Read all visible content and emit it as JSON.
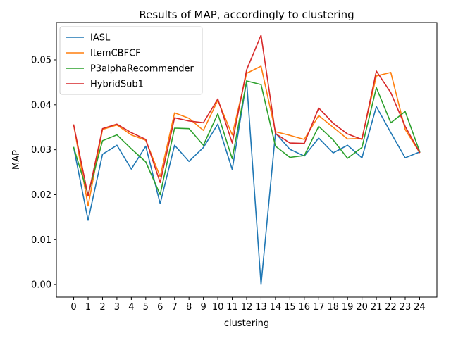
{
  "chart_data": {
    "type": "line",
    "title": "Results of MAP, accordingly to clustering",
    "xlabel": "clustering",
    "ylabel": "MAP",
    "x": [
      0,
      1,
      2,
      3,
      4,
      5,
      6,
      7,
      8,
      9,
      10,
      11,
      12,
      13,
      14,
      15,
      16,
      17,
      18,
      19,
      20,
      21,
      22,
      23,
      24
    ],
    "x_tick_labels": [
      "0",
      "1",
      "2",
      "3",
      "4",
      "5",
      "6",
      "7",
      "8",
      "9",
      "10",
      "11",
      "12",
      "13",
      "14",
      "15",
      "16",
      "17",
      "18",
      "19",
      "20",
      "21",
      "22",
      "23",
      "24"
    ],
    "y_ticks": [
      0.0,
      0.01,
      0.02,
      0.03,
      0.04,
      0.05
    ],
    "y_tick_labels": [
      "0.00",
      "0.01",
      "0.02",
      "0.03",
      "0.04",
      "0.05"
    ],
    "ylim": [
      -0.0028,
      0.0583
    ],
    "xlim": [
      -1.2,
      25.2
    ],
    "grid": false,
    "legend_position": "upper-left",
    "series": [
      {
        "name": "IASL",
        "color": "#1f77b4",
        "values": [
          0.0305,
          0.0143,
          0.029,
          0.031,
          0.0257,
          0.0308,
          0.018,
          0.031,
          0.0274,
          0.0305,
          0.0357,
          0.0256,
          0.0453,
          0.0,
          0.0337,
          0.0301,
          0.0286,
          0.0326,
          0.0293,
          0.031,
          0.0282,
          0.0396,
          0.0338,
          0.0282,
          0.0295
        ]
      },
      {
        "name": "ItemCBFCF",
        "color": "#ff7f0e",
        "values": [
          0.0355,
          0.0175,
          0.0345,
          0.0355,
          0.0333,
          0.0321,
          0.024,
          0.0382,
          0.037,
          0.0343,
          0.041,
          0.0333,
          0.047,
          0.0486,
          0.034,
          0.0332,
          0.0323,
          0.0376,
          0.035,
          0.0324,
          0.0325,
          0.0464,
          0.0472,
          0.0345,
          0.0294
        ]
      },
      {
        "name": "P3alphaRecommender",
        "color": "#2ca02c",
        "values": [
          0.0305,
          0.02,
          0.032,
          0.0333,
          0.0302,
          0.0273,
          0.02,
          0.0348,
          0.0347,
          0.031,
          0.038,
          0.028,
          0.0453,
          0.0445,
          0.0308,
          0.0283,
          0.0287,
          0.0352,
          0.0322,
          0.0281,
          0.0305,
          0.0438,
          0.036,
          0.0385,
          0.0296
        ]
      },
      {
        "name": "HybridSub1",
        "color": "#d62728",
        "values": [
          0.0355,
          0.0197,
          0.0347,
          0.0357,
          0.0338,
          0.0323,
          0.0227,
          0.0371,
          0.0364,
          0.036,
          0.0413,
          0.0315,
          0.0478,
          0.0555,
          0.0336,
          0.0315,
          0.0314,
          0.0393,
          0.0359,
          0.0335,
          0.0323,
          0.0475,
          0.0427,
          0.0352,
          0.0294
        ]
      }
    ]
  }
}
